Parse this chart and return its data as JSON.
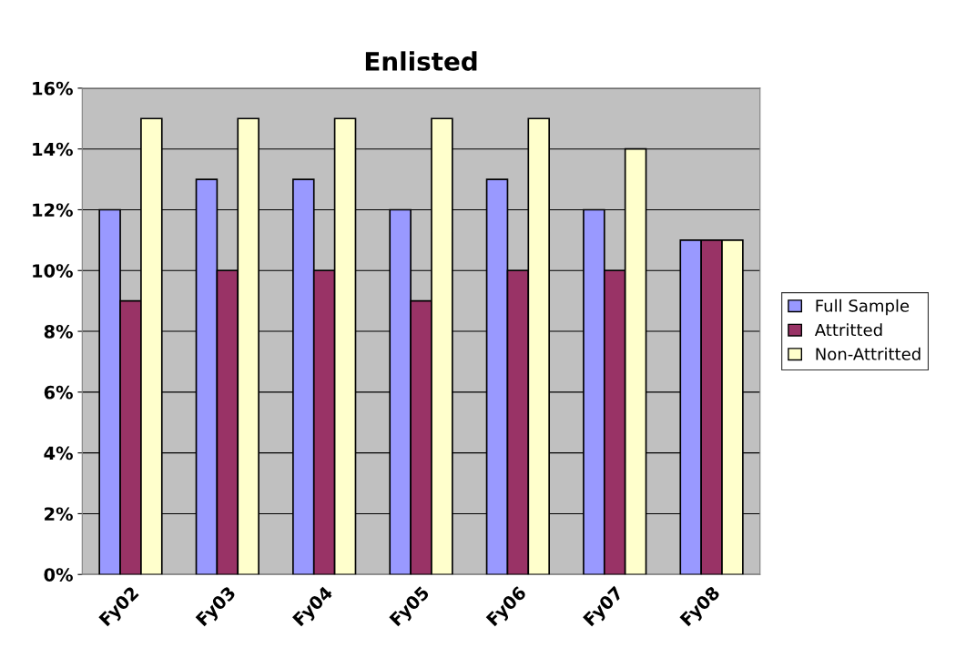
{
  "chart_data": {
    "type": "bar",
    "title": "Enlisted",
    "categories": [
      "Fy02",
      "Fy03",
      "Fy04",
      "Fy05",
      "Fy06",
      "Fy07",
      "Fy08"
    ],
    "series": [
      {
        "name": "Full Sample",
        "color": "#9999ff",
        "values": [
          12,
          13,
          13,
          12,
          13,
          12,
          11
        ]
      },
      {
        "name": "Attritted",
        "color": "#993366",
        "values": [
          9,
          10,
          10,
          9,
          10,
          10,
          11
        ]
      },
      {
        "name": "Non-Attritted",
        "color": "#ffffcc",
        "values": [
          15,
          15,
          15,
          15,
          15,
          14,
          11
        ]
      }
    ],
    "ylim": [
      0,
      16
    ],
    "yticks": [
      {
        "value": 0,
        "label": "0%"
      },
      {
        "value": 2,
        "label": "2%"
      },
      {
        "value": 4,
        "label": "4%"
      },
      {
        "value": 6,
        "label": "6%"
      },
      {
        "value": 8,
        "label": "8%"
      },
      {
        "value": 10,
        "label": "10%"
      },
      {
        "value": 12,
        "label": "12%"
      },
      {
        "value": 14,
        "label": "14%"
      },
      {
        "value": 16,
        "label": "16%"
      }
    ],
    "grid": "y",
    "legend": "right"
  }
}
